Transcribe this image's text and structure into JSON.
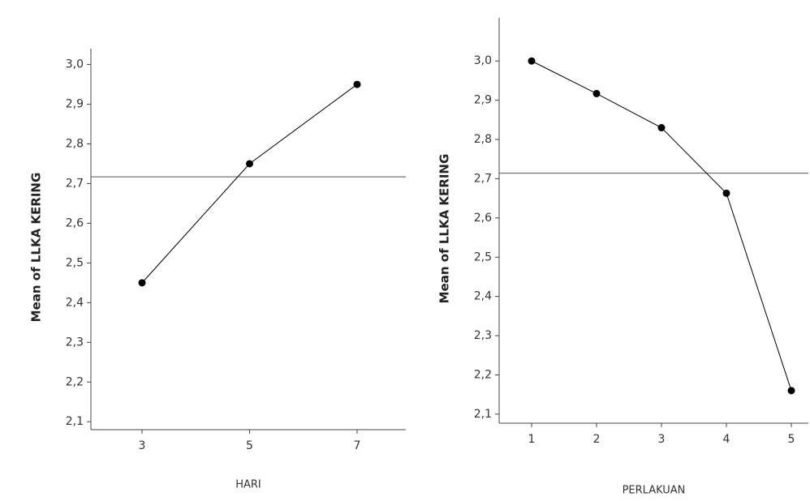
{
  "chart_data": [
    {
      "type": "line",
      "x_label": "HARI",
      "y_label": "Mean of LLKA KERING",
      "categories": [
        "3",
        "5",
        "7"
      ],
      "values": [
        2.45,
        2.75,
        2.95
      ],
      "color": "#000000",
      "ylim": [
        2.08,
        3.04
      ],
      "yticks": [
        {
          "value": 2.1,
          "label": "2,1"
        },
        {
          "value": 2.2,
          "label": "2,2"
        },
        {
          "value": 2.3,
          "label": "2,3"
        },
        {
          "value": 2.4,
          "label": "2,4"
        },
        {
          "value": 2.5,
          "label": "2,5"
        },
        {
          "value": 2.6,
          "label": "2,6"
        },
        {
          "value": 2.7,
          "label": "2,7"
        },
        {
          "value": 2.8,
          "label": "2,8"
        },
        {
          "value": 2.9,
          "label": "2,9"
        },
        {
          "value": 3.0,
          "label": "3,0"
        }
      ],
      "reference_line": 2.717
    },
    {
      "type": "line",
      "x_label": "PERLAKUAN",
      "y_label": "Mean of LLKA KERING",
      "categories": [
        "1",
        "2",
        "3",
        "4",
        "5"
      ],
      "values": [
        3.0,
        2.917,
        2.83,
        2.663,
        2.16
      ],
      "color": "#000000",
      "ylim": [
        2.077,
        3.11
      ],
      "yticks": [
        {
          "value": 2.1,
          "label": "2,1"
        },
        {
          "value": 2.2,
          "label": "2,2"
        },
        {
          "value": 2.3,
          "label": "2,3"
        },
        {
          "value": 2.4,
          "label": "2,4"
        },
        {
          "value": 2.5,
          "label": "2,5"
        },
        {
          "value": 2.6,
          "label": "2,6"
        },
        {
          "value": 2.7,
          "label": "2,7"
        },
        {
          "value": 2.8,
          "label": "2,8"
        },
        {
          "value": 2.9,
          "label": "2,9"
        },
        {
          "value": 3.0,
          "label": "3,0"
        }
      ],
      "reference_line": 2.714
    }
  ]
}
